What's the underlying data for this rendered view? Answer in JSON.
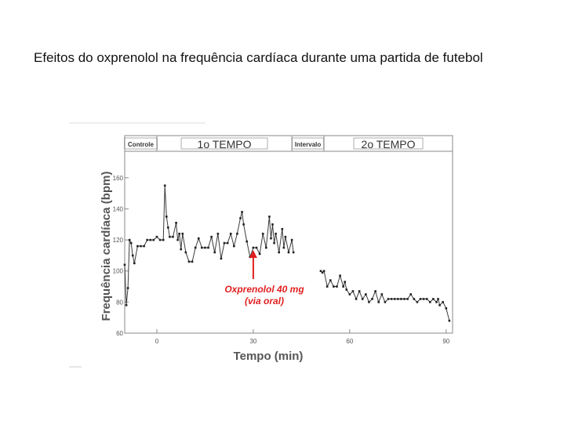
{
  "slide": {
    "title": "Efeitos do oxprenolol na frequência cardíaca durante uma partida de futebol"
  },
  "chart_data": {
    "type": "line",
    "ylabel": "Frequência cardíaca (bpm)",
    "xlabel": "Tempo (min)",
    "xlim": [
      -10,
      92
    ],
    "ylim": [
      60,
      170
    ],
    "x_ticks": [
      0,
      30,
      60,
      90
    ],
    "y_ticks": [
      60,
      80,
      100,
      120,
      140,
      160
    ],
    "phases": [
      {
        "label": "Controle",
        "start": -10,
        "end": 0
      },
      {
        "label": "1o TEMPO",
        "start": 0,
        "end": 42
      },
      {
        "label": "Intervalo",
        "start": 42,
        "end": 52
      },
      {
        "label": "2o TEMPO",
        "start": 52,
        "end": 92
      }
    ],
    "annotation": {
      "lines": [
        "Oxprenolol 40 mg",
        "(via oral)"
      ],
      "x": 30,
      "color": "#e02020"
    },
    "series": [
      {
        "values": [
          [
            -10,
            104
          ],
          [
            -9.5,
            78
          ],
          [
            -9,
            89
          ],
          [
            -8.5,
            120
          ],
          [
            -8,
            118
          ],
          [
            -7.5,
            110
          ],
          [
            -7,
            105
          ],
          [
            -6,
            116
          ],
          [
            -5,
            116
          ],
          [
            -4,
            116
          ],
          [
            -3,
            120
          ],
          [
            -2,
            120
          ],
          [
            -1,
            120
          ],
          [
            0,
            122
          ],
          [
            1,
            120
          ],
          [
            2,
            120
          ],
          [
            2.5,
            155
          ],
          [
            3,
            135
          ],
          [
            3.5,
            128
          ],
          [
            4,
            122
          ],
          [
            5,
            122
          ],
          [
            6,
            131
          ],
          [
            6.5,
            120
          ],
          [
            7,
            124
          ],
          [
            7.5,
            114
          ],
          [
            8,
            124
          ],
          [
            9,
            112
          ],
          [
            10,
            106
          ],
          [
            11,
            106
          ],
          [
            12,
            115
          ],
          [
            13,
            121
          ],
          [
            14,
            115
          ],
          [
            15,
            115
          ],
          [
            16,
            115
          ],
          [
            17,
            122
          ],
          [
            18,
            112
          ],
          [
            19,
            124
          ],
          [
            20,
            108
          ],
          [
            21,
            118
          ],
          [
            22,
            118
          ],
          [
            23,
            124
          ],
          [
            24,
            116
          ],
          [
            25,
            124
          ],
          [
            26,
            134
          ],
          [
            26.5,
            138
          ],
          [
            27,
            130
          ],
          [
            28,
            119
          ],
          [
            29,
            109
          ],
          [
            30,
            115
          ],
          [
            31,
            115
          ],
          [
            32,
            111
          ],
          [
            33,
            124
          ],
          [
            34,
            115
          ],
          [
            35,
            135
          ],
          [
            35.5,
            121
          ],
          [
            36,
            130
          ],
          [
            36.5,
            118
          ],
          [
            37,
            124
          ],
          [
            38,
            112
          ],
          [
            39,
            127
          ],
          [
            39.5,
            115
          ],
          [
            40,
            122
          ],
          [
            41,
            112
          ],
          [
            42,
            120
          ],
          [
            42.5,
            112
          ],
          null,
          [
            51,
            100
          ],
          [
            51.5,
            99
          ],
          [
            52,
            100
          ],
          [
            53,
            90
          ],
          [
            54,
            94
          ],
          [
            55,
            90
          ],
          [
            56,
            90
          ],
          [
            57,
            97
          ],
          [
            58,
            90
          ],
          [
            58.5,
            93
          ],
          [
            59,
            88
          ],
          [
            60,
            85
          ],
          [
            61,
            87
          ],
          [
            62,
            82
          ],
          [
            63,
            87
          ],
          [
            64,
            82
          ],
          [
            65,
            85
          ],
          [
            66,
            80
          ],
          [
            67,
            82
          ],
          [
            68,
            87
          ],
          [
            69,
            80
          ],
          [
            70,
            85
          ],
          [
            71,
            80
          ],
          [
            72,
            82
          ],
          [
            73,
            82
          ],
          [
            74,
            82
          ],
          [
            75,
            82
          ],
          [
            76,
            82
          ],
          [
            77,
            82
          ],
          [
            78,
            82
          ],
          [
            79,
            85
          ],
          [
            80,
            82
          ],
          [
            81,
            80
          ],
          [
            82,
            82
          ],
          [
            83,
            82
          ],
          [
            84,
            82
          ],
          [
            85,
            80
          ],
          [
            86,
            82
          ],
          [
            87,
            80
          ],
          [
            87.5,
            82
          ],
          [
            88,
            78
          ],
          [
            89,
            80
          ],
          [
            90,
            76
          ],
          [
            91,
            68
          ]
        ]
      }
    ]
  }
}
